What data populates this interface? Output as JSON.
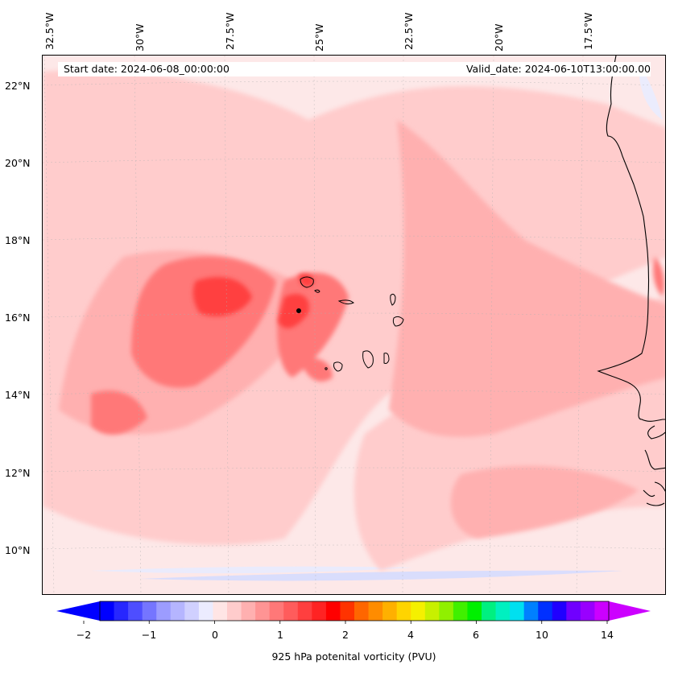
{
  "map": {
    "start_date": "Start date: 2024-06-08_00:00:00",
    "valid_date": "Valid_date: 2024-06-10T13:00:00.00",
    "lon_labels": [
      "32.5°W",
      "30°W",
      "27.5°W",
      "25°W",
      "22.5°W",
      "20°W",
      "17.5°W"
    ],
    "lat_labels": [
      "22°N",
      "20°N",
      "18°N",
      "16°N",
      "14°N",
      "12°N",
      "10°N"
    ],
    "extent": {
      "lon_min": -32.5,
      "lon_max": -15.2,
      "lat_min": 8.9,
      "lat_max": 22.8
    },
    "background_color": "#fde8e8",
    "coastline_color": "#000000"
  },
  "colorbar": {
    "label": "925 hPa potenital vorticity (PVU)",
    "tick_labels": [
      "−2",
      "−1",
      "0",
      "1",
      "2",
      "4",
      "6",
      "10",
      "14"
    ],
    "colors": [
      "#0000ff",
      "#2727ff",
      "#4e4eff",
      "#7575ff",
      "#9c9cff",
      "#b5b5ff",
      "#d0d0ff",
      "#ececff",
      "#ffe5e5",
      "#ffcccc",
      "#ffb0b0",
      "#ff9494",
      "#ff7878",
      "#ff5c5c",
      "#ff3f3f",
      "#ff2323",
      "#ff0000",
      "#ff3300",
      "#ff6600",
      "#ff8c00",
      "#ffb000",
      "#ffd400",
      "#f5f000",
      "#c8f000",
      "#90f000",
      "#40f000",
      "#00f000",
      "#00f080",
      "#00f0c0",
      "#00e0f0",
      "#0080ff",
      "#0030ff",
      "#2000ff",
      "#7000ff",
      "#9900ff",
      "#cc00ff"
    ],
    "extend_low_color": "#0000ff",
    "extend_high_color": "#cc00ff"
  }
}
